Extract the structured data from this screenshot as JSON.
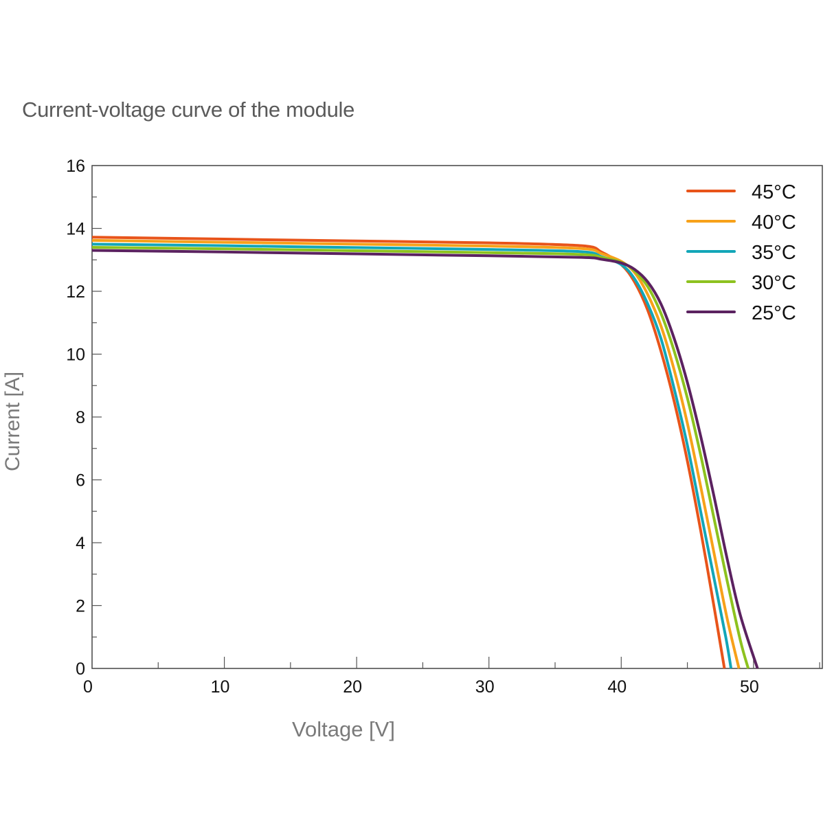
{
  "title": "Current-voltage curve of the module",
  "axes": {
    "xlabel": "Voltage [V]",
    "ylabel": "Current [A]"
  },
  "chart_data": {
    "type": "line",
    "title": "Current-voltage curve of the module",
    "xlabel": "Voltage [V]",
    "ylabel": "Current [A]",
    "xlim": [
      0,
      55.2
    ],
    "ylim": [
      0,
      16
    ],
    "xticks": [
      0,
      10,
      20,
      30,
      40,
      50
    ],
    "yticks": [
      0,
      2,
      4,
      6,
      8,
      10,
      12,
      14,
      16
    ],
    "x_minor_step": 5,
    "y_minor_step": 1,
    "grid": false,
    "legend_position": "upper right",
    "series": [
      {
        "name": "45°C",
        "color": "#e8541a",
        "points": [
          [
            0,
            13.72
          ],
          [
            10,
            13.66
          ],
          [
            20,
            13.6
          ],
          [
            30,
            13.54
          ],
          [
            37,
            13.45
          ],
          [
            38.5,
            13.25
          ],
          [
            40,
            12.85
          ],
          [
            41,
            12.3
          ],
          [
            42,
            11.4
          ],
          [
            43,
            10.1
          ],
          [
            44,
            8.5
          ],
          [
            45,
            6.6
          ],
          [
            46,
            4.4
          ],
          [
            47,
            2.0
          ],
          [
            47.8,
            0
          ]
        ]
      },
      {
        "name": "40°C",
        "color": "#f7a11a",
        "points": [
          [
            0,
            13.62
          ],
          [
            10,
            13.56
          ],
          [
            20,
            13.5
          ],
          [
            30,
            13.44
          ],
          [
            37,
            13.36
          ],
          [
            38.5,
            13.2
          ],
          [
            40,
            12.95
          ],
          [
            41,
            12.6
          ],
          [
            42,
            11.9
          ],
          [
            43,
            10.9
          ],
          [
            44,
            9.5
          ],
          [
            45,
            7.8
          ],
          [
            46,
            5.8
          ],
          [
            47,
            3.7
          ],
          [
            48,
            1.6
          ],
          [
            48.9,
            0
          ]
        ]
      },
      {
        "name": "35°C",
        "color": "#12a6b8",
        "points": [
          [
            0,
            13.5
          ],
          [
            10,
            13.45
          ],
          [
            20,
            13.39
          ],
          [
            30,
            13.33
          ],
          [
            37,
            13.26
          ],
          [
            38.5,
            13.1
          ],
          [
            40,
            12.85
          ],
          [
            41,
            12.4
          ],
          [
            42,
            11.6
          ],
          [
            43,
            10.5
          ],
          [
            44,
            8.9
          ],
          [
            45,
            7.1
          ],
          [
            46,
            5.0
          ],
          [
            47,
            2.9
          ],
          [
            47.9,
            1.0
          ],
          [
            48.3,
            0
          ]
        ]
      },
      {
        "name": "30°C",
        "color": "#8dc21f",
        "points": [
          [
            0,
            13.4
          ],
          [
            10,
            13.35
          ],
          [
            20,
            13.29
          ],
          [
            30,
            13.23
          ],
          [
            37,
            13.17
          ],
          [
            38.5,
            13.08
          ],
          [
            40,
            12.92
          ],
          [
            41,
            12.65
          ],
          [
            42,
            12.15
          ],
          [
            43,
            11.3
          ],
          [
            44,
            10.1
          ],
          [
            45,
            8.6
          ],
          [
            46,
            6.8
          ],
          [
            47,
            4.8
          ],
          [
            48,
            2.8
          ],
          [
            49,
            0.9
          ],
          [
            49.6,
            0
          ]
        ]
      },
      {
        "name": "25°C",
        "color": "#5b2260",
        "points": [
          [
            0,
            13.3
          ],
          [
            10,
            13.25
          ],
          [
            20,
            13.19
          ],
          [
            30,
            13.13
          ],
          [
            37,
            13.08
          ],
          [
            38.5,
            13.02
          ],
          [
            40,
            12.9
          ],
          [
            41,
            12.7
          ],
          [
            42,
            12.3
          ],
          [
            43,
            11.6
          ],
          [
            44,
            10.5
          ],
          [
            45,
            9.1
          ],
          [
            46,
            7.4
          ],
          [
            47,
            5.5
          ],
          [
            48,
            3.5
          ],
          [
            49,
            1.7
          ],
          [
            50.3,
            0
          ]
        ]
      }
    ]
  },
  "legend": [
    {
      "label": "45°C",
      "color": "#e8541a"
    },
    {
      "label": "40°C",
      "color": "#f7a11a"
    },
    {
      "label": "35°C",
      "color": "#12a6b8"
    },
    {
      "label": "30°C",
      "color": "#8dc21f"
    },
    {
      "label": "25°C",
      "color": "#5b2260"
    }
  ]
}
